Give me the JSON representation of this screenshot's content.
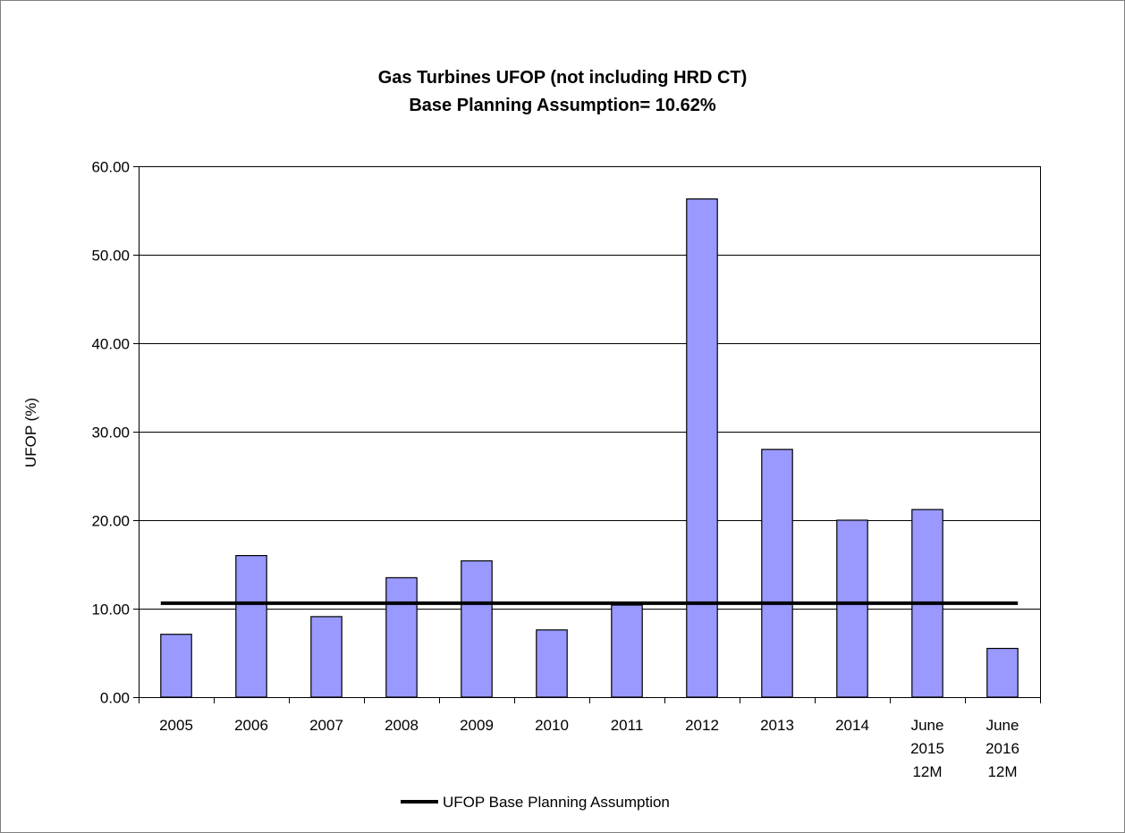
{
  "chart_data": {
    "type": "bar",
    "title_line1": "Gas Turbines UFOP (not including HRD CT)",
    "title_line2": "Base Planning Assumption= 10.62%",
    "ylabel": "UFOP (%)",
    "xlabel": "",
    "ylim": [
      0,
      60
    ],
    "yticks": [
      "0.00",
      "10.00",
      "20.00",
      "30.00",
      "40.00",
      "50.00",
      "60.00"
    ],
    "grid": true,
    "categories": [
      [
        "2005"
      ],
      [
        "2006"
      ],
      [
        "2007"
      ],
      [
        "2008"
      ],
      [
        "2009"
      ],
      [
        "2010"
      ],
      [
        "2011"
      ],
      [
        "2012"
      ],
      [
        "2013"
      ],
      [
        "2014"
      ],
      [
        "June",
        "2015",
        "12M"
      ],
      [
        "June",
        "2016",
        "12M"
      ]
    ],
    "series": [
      {
        "name": "",
        "color": "#9999FF",
        "values": [
          7.1,
          16.0,
          9.1,
          13.5,
          15.4,
          7.6,
          10.4,
          56.3,
          28.0,
          20.0,
          21.2,
          5.5
        ]
      }
    ],
    "reference_line": {
      "name": "UFOP Base Planning Assumption",
      "value": 10.62,
      "color": "#000000"
    },
    "legend_position": "bottom"
  }
}
